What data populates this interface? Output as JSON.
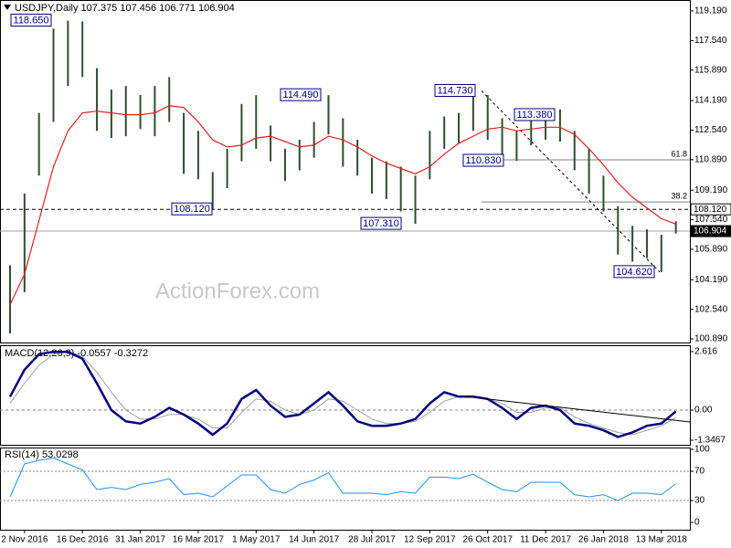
{
  "chart_data": [
    {
      "type": "ohlc",
      "title": "USDJPY,Daily  107.375 107.456 106.771 106.904",
      "watermark": "ActionForex.com",
      "color": "#2f4f2f",
      "high": [
        105.0,
        109.0,
        113.5,
        118.2,
        118.65,
        118.6,
        116.0,
        114.8,
        115.0,
        114.5,
        115.0,
        115.5,
        113.5,
        112.5,
        110.2,
        111.5,
        114.0,
        114.49,
        112.8,
        111.5,
        112.0,
        113.0,
        114.49,
        113.2,
        112.0,
        111.0,
        110.8,
        110.5,
        110.0,
        112.5,
        113.3,
        113.5,
        114.73,
        114.5,
        113.2,
        112.5,
        113.4,
        113.38,
        113.7,
        112.5,
        111.5,
        110.0,
        108.3,
        107.2,
        107.0,
        106.7,
        107.456
      ],
      "low": [
        101.2,
        103.5,
        110.0,
        113.0,
        115.0,
        115.5,
        112.5,
        112.1,
        112.2,
        112.6,
        112.2,
        113.0,
        110.1,
        109.8,
        108.12,
        109.3,
        110.8,
        111.5,
        110.8,
        109.7,
        110.3,
        111.0,
        112.3,
        110.5,
        110.0,
        109.0,
        108.7,
        108.0,
        107.31,
        109.8,
        111.5,
        111.8,
        112.5,
        112.0,
        111.0,
        110.83,
        111.7,
        112.0,
        111.9,
        110.3,
        109.0,
        108.0,
        105.6,
        105.2,
        105.4,
        104.62,
        106.771
      ],
      "ma": {
        "color": "#e02020",
        "values": [
          102.8,
          104.5,
          107.5,
          110.5,
          112.5,
          113.5,
          113.6,
          113.5,
          113.4,
          113.4,
          113.5,
          113.9,
          113.8,
          113.0,
          112.0,
          111.6,
          111.7,
          112.1,
          112.2,
          111.9,
          111.6,
          111.7,
          112.2,
          112.0,
          111.6,
          111.1,
          110.7,
          110.4,
          110.1,
          110.5,
          111.2,
          111.8,
          112.2,
          112.6,
          112.7,
          112.5,
          112.6,
          112.7,
          112.7,
          112.3,
          111.5,
          110.6,
          109.6,
          108.8,
          108.2,
          107.6,
          107.3
        ]
      },
      "ylim": [
        100.69,
        119.8
      ],
      "yticks": [
        {
          "value": 119.19,
          "label": "119.190"
        },
        {
          "value": 117.54,
          "label": "117.540"
        },
        {
          "value": 115.89,
          "label": "115.890"
        },
        {
          "value": 114.19,
          "label": "114.190"
        },
        {
          "value": 112.54,
          "label": "112.540"
        },
        {
          "value": 110.89,
          "label": "110.890"
        },
        {
          "value": 109.19,
          "label": "109.190"
        },
        {
          "value": 107.54,
          "label": "107.540"
        },
        {
          "value": 105.89,
          "label": "105.890"
        },
        {
          "value": 104.19,
          "label": "104.190"
        },
        {
          "value": 102.54,
          "label": "102.540"
        },
        {
          "value": 100.89,
          "label": "100.890"
        }
      ],
      "annotations": [
        {
          "value": 118.65,
          "label": "118.650"
        },
        {
          "value": 114.49,
          "label": "114.490"
        },
        {
          "value": 114.73,
          "label": "114.730"
        },
        {
          "value": 113.38,
          "label": "113.380"
        },
        {
          "value": 110.83,
          "label": "110.830"
        },
        {
          "value": 108.12,
          "label": "108.120"
        },
        {
          "value": 107.31,
          "label": "107.310"
        },
        {
          "value": 104.62,
          "label": "104.620"
        }
      ],
      "hlines": [
        {
          "value": 108.12,
          "label": "108.120",
          "style": "dashed"
        },
        {
          "value": 106.904,
          "label": "106.904",
          "style": "current"
        }
      ],
      "fib_levels": [
        {
          "value": 110.88,
          "label": "61.8"
        },
        {
          "value": 108.53,
          "label": "38.2"
        }
      ],
      "trendline": [
        114.73,
        104.62
      ]
    },
    {
      "type": "macd",
      "label": "MACD(12,26,9) -0.0557 -0.3272",
      "series": [
        {
          "color": "#000080",
          "values": [
            0.6,
            1.8,
            2.5,
            2.6,
            2.6,
            2.3,
            1.2,
            0.0,
            -0.5,
            -0.6,
            -0.3,
            0.1,
            -0.2,
            -0.6,
            -1.1,
            -0.6,
            0.5,
            0.9,
            0.2,
            -0.3,
            -0.2,
            0.3,
            0.8,
            0.2,
            -0.5,
            -0.7,
            -0.7,
            -0.6,
            -0.4,
            0.3,
            0.8,
            0.6,
            0.6,
            0.5,
            0.1,
            -0.4,
            0.1,
            0.2,
            0.0,
            -0.6,
            -0.7,
            -0.9,
            -1.2,
            -1.0,
            -0.7,
            -0.6,
            -0.0557
          ]
        },
        {
          "color": "#a0a0a0",
          "values": [
            0.3,
            1.2,
            2.0,
            2.5,
            2.6,
            2.4,
            1.7,
            0.8,
            0.0,
            -0.4,
            -0.4,
            -0.2,
            -0.2,
            -0.4,
            -0.8,
            -0.8,
            -0.1,
            0.5,
            0.4,
            0.0,
            -0.2,
            0.0,
            0.5,
            0.4,
            0.0,
            -0.4,
            -0.6,
            -0.6,
            -0.5,
            -0.1,
            0.4,
            0.6,
            0.6,
            0.5,
            0.3,
            -0.1,
            -0.1,
            0.1,
            0.1,
            -0.3,
            -0.6,
            -0.8,
            -1.0,
            -1.1,
            -0.9,
            -0.7,
            -0.3272
          ]
        }
      ],
      "ylim": [
        -1.59,
        2.9
      ],
      "yticks": [
        2.616,
        {
          "value": 0,
          "label": "0.00"
        },
        -1.3467
      ],
      "trendline": [
        0.61,
        -0.53
      ]
    },
    {
      "type": "rsi",
      "label": "RSI(14) 53.0298",
      "color": "#1e90ff",
      "values": [
        35,
        80,
        85,
        88,
        80,
        72,
        45,
        48,
        45,
        52,
        55,
        60,
        38,
        40,
        35,
        50,
        65,
        65,
        45,
        40,
        52,
        58,
        68,
        40,
        40,
        40,
        38,
        42,
        40,
        62,
        62,
        60,
        66,
        55,
        45,
        42,
        55,
        55,
        55,
        38,
        35,
        38,
        30,
        40,
        40,
        38,
        53.0298
      ],
      "ylim": [
        -10,
        102.5
      ],
      "yticks": [
        100,
        70,
        30,
        0
      ],
      "levels": [
        70,
        30
      ],
      "categories": [
        null,
        "2 Nov 2016",
        null,
        null,
        null,
        "16 Dec 2016",
        null,
        null,
        null,
        "31 Jan 2017",
        null,
        null,
        null,
        "16 Mar 2017",
        null,
        null,
        null,
        "1 May 2017",
        null,
        null,
        null,
        "14 Jun 2017",
        null,
        null,
        null,
        "28 Jul 2017",
        null,
        null,
        null,
        "12 Sep 2017",
        null,
        null,
        null,
        "26 Oct 2017",
        null,
        null,
        null,
        "11 Dec 2017",
        null,
        null,
        null,
        "26 Jan 2018",
        null,
        null,
        null,
        "13 Mar 2018",
        null
      ]
    }
  ]
}
